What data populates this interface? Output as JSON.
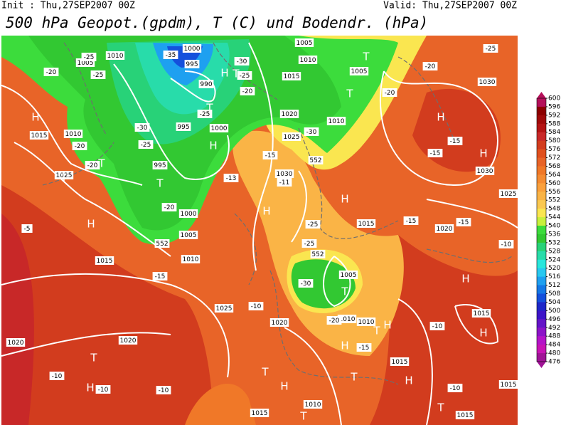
{
  "header": {
    "init": "Init : Thu,27SEP2007 00Z",
    "valid": "Valid: Thu,27SEP2007 00Z",
    "title": "500 hPa Geopot.(gpdm), T (C) und Bodendr. (hPa)"
  },
  "colorbar": {
    "levels": [
      600,
      596,
      592,
      588,
      584,
      580,
      576,
      572,
      568,
      564,
      560,
      556,
      552,
      548,
      544,
      540,
      536,
      532,
      528,
      524,
      520,
      516,
      512,
      508,
      504,
      500,
      496,
      492,
      488,
      484,
      480,
      476
    ],
    "colors": [
      "#b4105a",
      "#8c0000",
      "#a00a0a",
      "#b41414",
      "#c82828",
      "#d23c1e",
      "#e0501e",
      "#e86428",
      "#f07828",
      "#f58c32",
      "#faa03c",
      "#fab446",
      "#fac850",
      "#fae650",
      "#c8f03c",
      "#3cdc3c",
      "#32c832",
      "#28d278",
      "#28dcaa",
      "#28e6dc",
      "#28c8f0",
      "#1ea0f0",
      "#1478e6",
      "#1450dc",
      "#1e28c8",
      "#3c14c8",
      "#6414c8",
      "#8c14c8",
      "#b414c8",
      "#c814b4",
      "#a01496"
    ]
  },
  "map": {
    "isobar_labels": [
      "1005",
      "1010",
      "1000",
      "995",
      "990",
      "995",
      "1000",
      "995",
      "1000",
      "1005",
      "1010",
      "1015",
      "1015",
      "1010",
      "1025",
      "1005",
      "1010",
      "1005",
      "1015",
      "1020",
      "1025",
      "1010",
      "1030",
      "1030",
      "1030",
      "1025",
      "1020",
      "1015",
      "1005",
      "1010",
      "1010",
      "1015",
      "1025",
      "1020",
      "1020",
      "1020",
      "1015",
      "1015",
      "1010",
      "1015",
      "1015"
    ],
    "temperature_labels": [
      "-25",
      "-35",
      "-30",
      "-25",
      "-20",
      "-25",
      "-20",
      "-30",
      "-25",
      "-25",
      "-20",
      "-20",
      "-20",
      "-15",
      "-11",
      "-13",
      "-5",
      "-15",
      "-10",
      "-25",
      "-25",
      "-30",
      "-20",
      "-15",
      "-10",
      "-10",
      "-10",
      "-10",
      "-10",
      "-15",
      "-15",
      "-10",
      "-15",
      "-15",
      "-20",
      "-20",
      "-25",
      "-30"
    ],
    "pressure_centers": [
      "H",
      "H",
      "T",
      "H",
      "T",
      "T",
      "T",
      "H",
      "T",
      "T",
      "H",
      "H",
      "H",
      "H",
      "H",
      "H",
      "T",
      "H",
      "T",
      "H",
      "T",
      "H",
      "T",
      "H",
      "T",
      "H",
      "T",
      "T",
      "T"
    ],
    "height_labels": [
      "552",
      "552",
      "552"
    ]
  }
}
